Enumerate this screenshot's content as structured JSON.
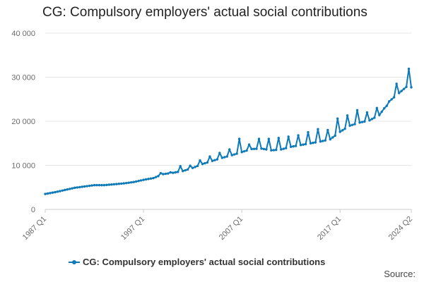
{
  "chart_data": {
    "type": "line",
    "title": "CG: Compulsory employers' actual social contributions",
    "series": [
      {
        "name": "CG: Compulsory employers' actual social contributions",
        "anchors": [
          [
            "1987 Q1",
            3500
          ],
          [
            "1988 Q1",
            3900
          ],
          [
            "1989 Q1",
            4400
          ],
          [
            "1990 Q1",
            4900
          ],
          [
            "1991 Q1",
            5200
          ],
          [
            "1992 Q1",
            5500
          ],
          [
            "1993 Q1",
            5500
          ],
          [
            "1994 Q1",
            5700
          ],
          [
            "1995 Q1",
            5900
          ],
          [
            "1996 Q1",
            6200
          ],
          [
            "1997 Q1",
            6700
          ],
          [
            "1998 Q1",
            7100
          ],
          [
            "1999 Q1",
            8000
          ],
          [
            "2000 Q1",
            8300
          ],
          [
            "2001 Q1",
            8700
          ],
          [
            "2002 Q1",
            9400
          ],
          [
            "2003 Q1",
            10300
          ],
          [
            "2004 Q1",
            11000
          ],
          [
            "2005 Q1",
            11700
          ],
          [
            "2006 Q1",
            12300
          ],
          [
            "2007 Q1",
            13000
          ],
          [
            "2008 Q1",
            13700
          ],
          [
            "2009 Q1",
            13800
          ],
          [
            "2010 Q1",
            13400
          ],
          [
            "2011 Q1",
            13600
          ],
          [
            "2012 Q1",
            14200
          ],
          [
            "2013 Q1",
            14600
          ],
          [
            "2014 Q1",
            15000
          ],
          [
            "2015 Q1",
            15400
          ],
          [
            "2016 Q1",
            15900
          ],
          [
            "2017 Q1",
            17600
          ],
          [
            "2018 Q1",
            19000
          ],
          [
            "2019 Q1",
            19700
          ],
          [
            "2020 Q1",
            20200
          ],
          [
            "2021 Q1",
            21400
          ],
          [
            "2022 Q1",
            24500
          ],
          [
            "2023 Q1",
            26400
          ],
          [
            "2023 Q4",
            27800
          ],
          [
            "2024 Q1",
            31900
          ],
          [
            "2024 Q2",
            27700
          ]
        ],
        "seasonal_peaks": [
          [
            "1998 Q4",
            8200
          ],
          [
            "1999 Q4",
            8400
          ],
          [
            "2000 Q4",
            9800
          ],
          [
            "2001 Q4",
            9900
          ],
          [
            "2002 Q4",
            11100
          ],
          [
            "2003 Q4",
            12000
          ],
          [
            "2004 Q4",
            12800
          ],
          [
            "2005 Q4",
            13600
          ],
          [
            "2006 Q4",
            16000
          ],
          [
            "2007 Q4",
            14700
          ],
          [
            "2008 Q4",
            16000
          ],
          [
            "2009 Q4",
            16000
          ],
          [
            "2010 Q4",
            16200
          ],
          [
            "2011 Q4",
            16500
          ],
          [
            "2012 Q4",
            16800
          ],
          [
            "2013 Q4",
            17500
          ],
          [
            "2014 Q4",
            18200
          ],
          [
            "2015 Q4",
            18000
          ],
          [
            "2016 Q4",
            20600
          ],
          [
            "2017 Q4",
            21300
          ],
          [
            "2018 Q4",
            22500
          ],
          [
            "2019 Q4",
            22000
          ],
          [
            "2020 Q4",
            23000
          ],
          [
            "2021 Q4",
            23500
          ],
          [
            "2022 Q4",
            28500
          ]
        ]
      }
    ],
    "x_ticks": [
      "1987 Q1",
      "1997 Q1",
      "2007 Q1",
      "2017 Q1",
      "2024 Q2"
    ],
    "y_ticks": [
      "0",
      "10 000",
      "20 000",
      "30 000",
      "40 000"
    ],
    "ylim": [
      0,
      40000
    ],
    "xlabel": "",
    "ylabel": "",
    "grid": "horizontal",
    "legend_position": "bottom",
    "source_label": "Source:",
    "colors": {
      "series": "#0f7ab8",
      "grid": "#e6e6e6",
      "axis": "#cccccc"
    }
  }
}
